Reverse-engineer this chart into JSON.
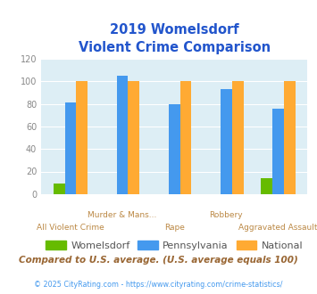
{
  "title_line1": "2019 Womelsdorf",
  "title_line2": "Violent Crime Comparison",
  "groups": [
    {
      "label_top": "",
      "label_bot": "All Violent Crime",
      "womelsdorf": 9,
      "pennsylvania": 81,
      "national": 100
    },
    {
      "label_top": "Murder & Mans...",
      "label_bot": "",
      "womelsdorf": 0,
      "pennsylvania": 105,
      "national": 100
    },
    {
      "label_top": "",
      "label_bot": "Rape",
      "womelsdorf": 0,
      "pennsylvania": 80,
      "national": 100
    },
    {
      "label_top": "Robbery",
      "label_bot": "",
      "womelsdorf": 0,
      "pennsylvania": 93,
      "national": 100
    },
    {
      "label_top": "",
      "label_bot": "Aggravated Assault",
      "womelsdorf": 14,
      "pennsylvania": 76,
      "national": 100
    }
  ],
  "color_womelsdorf": "#66bb00",
  "color_pennsylvania": "#4499ee",
  "color_national": "#ffaa33",
  "ylim": [
    0,
    120
  ],
  "yticks": [
    0,
    20,
    40,
    60,
    80,
    100,
    120
  ],
  "plot_bg_color": "#ddeef5",
  "title_color": "#2255cc",
  "xlabel_color": "#bb8844",
  "footer_text": "Compared to U.S. average. (U.S. average equals 100)",
  "footer_color": "#996633",
  "copyright_text": "© 2025 CityRating.com - https://www.cityrating.com/crime-statistics/",
  "copyright_color": "#4499ee",
  "legend_labels": [
    "Womelsdorf",
    "Pennsylvania",
    "National"
  ],
  "legend_text_color": "#555555",
  "bar_width": 0.22
}
